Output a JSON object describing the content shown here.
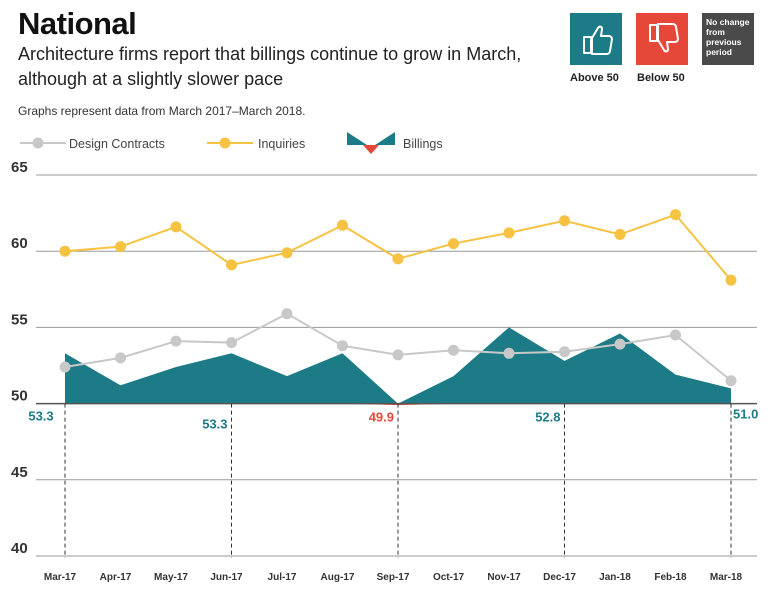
{
  "header": {
    "title": "National",
    "subtitle": "Architecture firms report that billings continue to grow in March, although at a slightly slower pace",
    "note": "Graphs represent data from March 2017–March 2018."
  },
  "badges": {
    "above_label": "Above 50",
    "below_label": "Below 50",
    "no_change_text": "No change from previous period",
    "above_icon": "thumbs-up-icon",
    "below_icon": "thumbs-down-icon"
  },
  "colors": {
    "billings": "#1c7b86",
    "below50": "#e54838",
    "inquiries": "#f5c242",
    "design": "#c8c8c8",
    "no_change": "#4a4a4a"
  },
  "chart_data": {
    "type": "line",
    "categories": [
      "Mar-17",
      "Apr-17",
      "May-17",
      "Jun-17",
      "Jul-17",
      "Aug-17",
      "Sep-17",
      "Oct-17",
      "Nov-17",
      "Dec-17",
      "Jan-18",
      "Feb-18",
      "Mar-18"
    ],
    "ylim": [
      40,
      65
    ],
    "yticks": [
      40,
      45,
      50,
      55,
      60,
      65
    ],
    "baseline": 50,
    "series": [
      {
        "name": "Design Contracts",
        "kind": "line",
        "color": "#c8c8c8",
        "values": [
          52.4,
          53.0,
          54.1,
          54.0,
          55.9,
          53.8,
          53.2,
          53.5,
          53.3,
          53.4,
          53.9,
          54.5,
          51.5
        ]
      },
      {
        "name": "Inquiries",
        "kind": "line",
        "color": "#f5c242",
        "values": [
          60.0,
          60.3,
          61.6,
          59.1,
          59.9,
          61.7,
          59.5,
          60.5,
          61.2,
          62.0,
          61.1,
          62.4,
          58.1
        ]
      },
      {
        "name": "Billings",
        "kind": "area",
        "values": [
          53.3,
          51.2,
          52.4,
          53.3,
          51.8,
          53.3,
          49.9,
          51.8,
          55.0,
          52.8,
          54.6,
          51.9,
          51.0
        ]
      }
    ],
    "annotations": [
      {
        "category": "Mar-17",
        "text": "53.3",
        "color": "#1c7b86"
      },
      {
        "category": "Jun-17",
        "text": "53.3",
        "color": "#1c7b86"
      },
      {
        "category": "Sep-17",
        "text": "49.9",
        "color": "#e54838"
      },
      {
        "category": "Dec-17",
        "text": "52.8",
        "color": "#1c7b86"
      },
      {
        "category": "Mar-18",
        "text": "51.0",
        "color": "#1c7b86"
      }
    ]
  }
}
